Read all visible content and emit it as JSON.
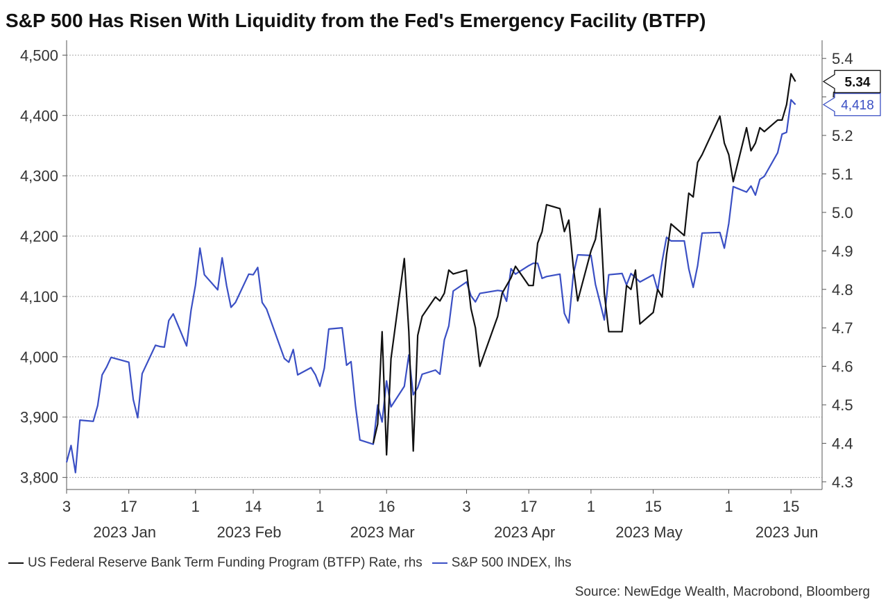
{
  "chart_data": {
    "type": "line",
    "title": "S&P 500 Has Risen With Liquidity from the Fed's Emergency Facility (BTFP)",
    "source": "Source: NewEdge Wealth, Macrobond, Bloomberg",
    "grid": true,
    "x_range": [
      "2023-01-03",
      "2023-06-22"
    ],
    "x_ticks": [
      {
        "date": "2023-01-03",
        "label": "3"
      },
      {
        "date": "2023-01-17",
        "label": "17"
      },
      {
        "date": "2023-02-01",
        "label": "1"
      },
      {
        "date": "2023-02-14",
        "label": "14"
      },
      {
        "date": "2023-03-01",
        "label": "1"
      },
      {
        "date": "2023-03-16",
        "label": "16"
      },
      {
        "date": "2023-04-03",
        "label": "3"
      },
      {
        "date": "2023-04-17",
        "label": "17"
      },
      {
        "date": "2023-05-01",
        "label": "1"
      },
      {
        "date": "2023-05-15",
        "label": "15"
      },
      {
        "date": "2023-06-01",
        "label": "1"
      },
      {
        "date": "2023-06-15",
        "label": "15"
      }
    ],
    "x_months": [
      {
        "date": "2023-01-17",
        "label": "2023 Jan"
      },
      {
        "date": "2023-02-14",
        "label": "2023 Feb"
      },
      {
        "date": "2023-03-16",
        "label": "2023 Mar"
      },
      {
        "date": "2023-04-17",
        "label": "2023 Apr"
      },
      {
        "date": "2023-05-15",
        "label": "2023 May"
      },
      {
        "date": "2023-06-15",
        "label": "2023 Jun"
      }
    ],
    "y_left": {
      "range": [
        3780,
        4520
      ],
      "ticks": [
        3800,
        3900,
        4000,
        4100,
        4200,
        4300,
        4400,
        4500
      ],
      "tick_labels": [
        "3,800",
        "3,900",
        "4,000",
        "4,100",
        "4,200",
        "4,300",
        "4,400",
        "4,500"
      ]
    },
    "y_right": {
      "range": [
        4.28,
        5.44
      ],
      "ticks": [
        4.3,
        4.4,
        4.5,
        4.6,
        4.7,
        4.8,
        4.9,
        5.0,
        5.1,
        5.2,
        5.3,
        5.4
      ],
      "tick_labels": [
        "4.3",
        "4.4",
        "4.5",
        "4.6",
        "4.7",
        "4.8",
        "4.9",
        "5.0",
        "5.1",
        "5.2",
        "5.3",
        "5.4"
      ]
    },
    "series": [
      {
        "name": "S&P 500 INDEX, lhs",
        "axis": "left",
        "color": "#3a4fc4",
        "end_label": "4,418",
        "points": [
          [
            "2023-01-03",
            3825
          ],
          [
            "2023-01-04",
            3853
          ],
          [
            "2023-01-05",
            3808
          ],
          [
            "2023-01-06",
            3895
          ],
          [
            "2023-01-09",
            3893
          ],
          [
            "2023-01-10",
            3919
          ],
          [
            "2023-01-11",
            3970
          ],
          [
            "2023-01-12",
            3983
          ],
          [
            "2023-01-13",
            3999
          ],
          [
            "2023-01-17",
            3991
          ],
          [
            "2023-01-18",
            3929
          ],
          [
            "2023-01-19",
            3899
          ],
          [
            "2023-01-20",
            3972
          ],
          [
            "2023-01-23",
            4019
          ],
          [
            "2023-01-24",
            4017
          ],
          [
            "2023-01-25",
            4016
          ],
          [
            "2023-01-26",
            4060
          ],
          [
            "2023-01-27",
            4071
          ],
          [
            "2023-01-30",
            4018
          ],
          [
            "2023-01-31",
            4077
          ],
          [
            "2023-02-01",
            4119
          ],
          [
            "2023-02-02",
            4180
          ],
          [
            "2023-02-03",
            4136
          ],
          [
            "2023-02-06",
            4111
          ],
          [
            "2023-02-07",
            4164
          ],
          [
            "2023-02-08",
            4118
          ],
          [
            "2023-02-09",
            4082
          ],
          [
            "2023-02-10",
            4090
          ],
          [
            "2023-02-13",
            4137
          ],
          [
            "2023-02-14",
            4136
          ],
          [
            "2023-02-15",
            4148
          ],
          [
            "2023-02-16",
            4090
          ],
          [
            "2023-02-17",
            4079
          ],
          [
            "2023-02-21",
            3997
          ],
          [
            "2023-02-22",
            3991
          ],
          [
            "2023-02-23",
            4012
          ],
          [
            "2023-02-24",
            3970
          ],
          [
            "2023-02-27",
            3982
          ],
          [
            "2023-02-28",
            3970
          ],
          [
            "2023-03-01",
            3951
          ],
          [
            "2023-03-02",
            3981
          ],
          [
            "2023-03-03",
            4046
          ],
          [
            "2023-03-06",
            4048
          ],
          [
            "2023-03-07",
            3986
          ],
          [
            "2023-03-08",
            3992
          ],
          [
            "2023-03-09",
            3919
          ],
          [
            "2023-03-10",
            3862
          ],
          [
            "2023-03-13",
            3855
          ],
          [
            "2023-03-14",
            3920
          ],
          [
            "2023-03-15",
            3892
          ],
          [
            "2023-03-16",
            3960
          ],
          [
            "2023-03-17",
            3917
          ],
          [
            "2023-03-20",
            3951
          ],
          [
            "2023-03-21",
            4003
          ],
          [
            "2023-03-22",
            3937
          ],
          [
            "2023-03-23",
            3949
          ],
          [
            "2023-03-24",
            3971
          ],
          [
            "2023-03-27",
            3978
          ],
          [
            "2023-03-28",
            3971
          ],
          [
            "2023-03-29",
            4028
          ],
          [
            "2023-03-30",
            4051
          ],
          [
            "2023-03-31",
            4109
          ],
          [
            "2023-04-03",
            4124
          ],
          [
            "2023-04-04",
            4101
          ],
          [
            "2023-04-05",
            4091
          ],
          [
            "2023-04-06",
            4105
          ],
          [
            "2023-04-10",
            4110
          ],
          [
            "2023-04-11",
            4109
          ],
          [
            "2023-04-12",
            4092
          ],
          [
            "2023-04-13",
            4146
          ],
          [
            "2023-04-14",
            4137
          ],
          [
            "2023-04-17",
            4151
          ],
          [
            "2023-04-18",
            4155
          ],
          [
            "2023-04-19",
            4155
          ],
          [
            "2023-04-20",
            4130
          ],
          [
            "2023-04-21",
            4133
          ],
          [
            "2023-04-24",
            4137
          ],
          [
            "2023-04-25",
            4072
          ],
          [
            "2023-04-26",
            4056
          ],
          [
            "2023-04-27",
            4135
          ],
          [
            "2023-04-28",
            4169
          ],
          [
            "2023-05-01",
            4168
          ],
          [
            "2023-05-02",
            4120
          ],
          [
            "2023-05-03",
            4091
          ],
          [
            "2023-05-04",
            4061
          ],
          [
            "2023-05-05",
            4136
          ],
          [
            "2023-05-08",
            4138
          ],
          [
            "2023-05-09",
            4119
          ],
          [
            "2023-05-10",
            4138
          ],
          [
            "2023-05-11",
            4131
          ],
          [
            "2023-05-12",
            4124
          ],
          [
            "2023-05-15",
            4136
          ],
          [
            "2023-05-16",
            4110
          ],
          [
            "2023-05-17",
            4158
          ],
          [
            "2023-05-18",
            4198
          ],
          [
            "2023-05-19",
            4192
          ],
          [
            "2023-05-22",
            4192
          ],
          [
            "2023-05-23",
            4146
          ],
          [
            "2023-05-24",
            4115
          ],
          [
            "2023-05-25",
            4151
          ],
          [
            "2023-05-26",
            4205
          ],
          [
            "2023-05-30",
            4206
          ],
          [
            "2023-05-31",
            4180
          ],
          [
            "2023-06-01",
            4221
          ],
          [
            "2023-06-02",
            4282
          ],
          [
            "2023-06-05",
            4273
          ],
          [
            "2023-06-06",
            4283
          ],
          [
            "2023-06-07",
            4268
          ],
          [
            "2023-06-08",
            4294
          ],
          [
            "2023-06-09",
            4299
          ],
          [
            "2023-06-12",
            4338
          ],
          [
            "2023-06-13",
            4369
          ],
          [
            "2023-06-14",
            4372
          ],
          [
            "2023-06-15",
            4426
          ],
          [
            "2023-06-16",
            4418
          ]
        ]
      },
      {
        "name": "US Federal Reserve Bank Term Funding Program (BTFP) Rate, rhs",
        "axis": "right",
        "color": "#111111",
        "end_label": "5.34",
        "points": [
          [
            "2023-03-13",
            4.4
          ],
          [
            "2023-03-14",
            4.45
          ],
          [
            "2023-03-15",
            4.69
          ],
          [
            "2023-03-16",
            4.37
          ],
          [
            "2023-03-17",
            4.62
          ],
          [
            "2023-03-20",
            4.88
          ],
          [
            "2023-03-21",
            4.69
          ],
          [
            "2023-03-22",
            4.38
          ],
          [
            "2023-03-23",
            4.68
          ],
          [
            "2023-03-24",
            4.73
          ],
          [
            "2023-03-27",
            4.78
          ],
          [
            "2023-03-28",
            4.77
          ],
          [
            "2023-03-29",
            4.79
          ],
          [
            "2023-03-30",
            4.85
          ],
          [
            "2023-03-31",
            4.84
          ],
          [
            "2023-04-03",
            4.85
          ],
          [
            "2023-04-04",
            4.75
          ],
          [
            "2023-04-05",
            4.7
          ],
          [
            "2023-04-06",
            4.6
          ],
          [
            "2023-04-10",
            4.73
          ],
          [
            "2023-04-11",
            4.79
          ],
          [
            "2023-04-12",
            4.81
          ],
          [
            "2023-04-13",
            4.83
          ],
          [
            "2023-04-14",
            4.86
          ],
          [
            "2023-04-17",
            4.81
          ],
          [
            "2023-04-18",
            4.81
          ],
          [
            "2023-04-19",
            4.92
          ],
          [
            "2023-04-20",
            4.95
          ],
          [
            "2023-04-21",
            5.02
          ],
          [
            "2023-04-24",
            5.01
          ],
          [
            "2023-04-25",
            4.95
          ],
          [
            "2023-04-26",
            4.98
          ],
          [
            "2023-04-27",
            4.86
          ],
          [
            "2023-04-28",
            4.77
          ],
          [
            "2023-05-01",
            4.9
          ],
          [
            "2023-05-02",
            4.93
          ],
          [
            "2023-05-03",
            5.01
          ],
          [
            "2023-05-04",
            4.79
          ],
          [
            "2023-05-05",
            4.69
          ],
          [
            "2023-05-08",
            4.69
          ],
          [
            "2023-05-09",
            4.81
          ],
          [
            "2023-05-10",
            4.8
          ],
          [
            "2023-05-11",
            4.85
          ],
          [
            "2023-05-12",
            4.71
          ],
          [
            "2023-05-15",
            4.74
          ],
          [
            "2023-05-16",
            4.8
          ],
          [
            "2023-05-17",
            4.78
          ],
          [
            "2023-05-18",
            4.89
          ],
          [
            "2023-05-19",
            4.97
          ],
          [
            "2023-05-22",
            4.94
          ],
          [
            "2023-05-23",
            5.05
          ],
          [
            "2023-05-24",
            5.04
          ],
          [
            "2023-05-25",
            5.13
          ],
          [
            "2023-05-26",
            5.15
          ],
          [
            "2023-05-30",
            5.25
          ],
          [
            "2023-05-31",
            5.18
          ],
          [
            "2023-06-01",
            5.15
          ],
          [
            "2023-06-02",
            5.08
          ],
          [
            "2023-06-05",
            5.22
          ],
          [
            "2023-06-06",
            5.16
          ],
          [
            "2023-06-07",
            5.18
          ],
          [
            "2023-06-08",
            5.22
          ],
          [
            "2023-06-09",
            5.21
          ],
          [
            "2023-06-12",
            5.24
          ],
          [
            "2023-06-13",
            5.24
          ],
          [
            "2023-06-14",
            5.28
          ],
          [
            "2023-06-15",
            5.36
          ],
          [
            "2023-06-16",
            5.34
          ]
        ]
      }
    ]
  }
}
